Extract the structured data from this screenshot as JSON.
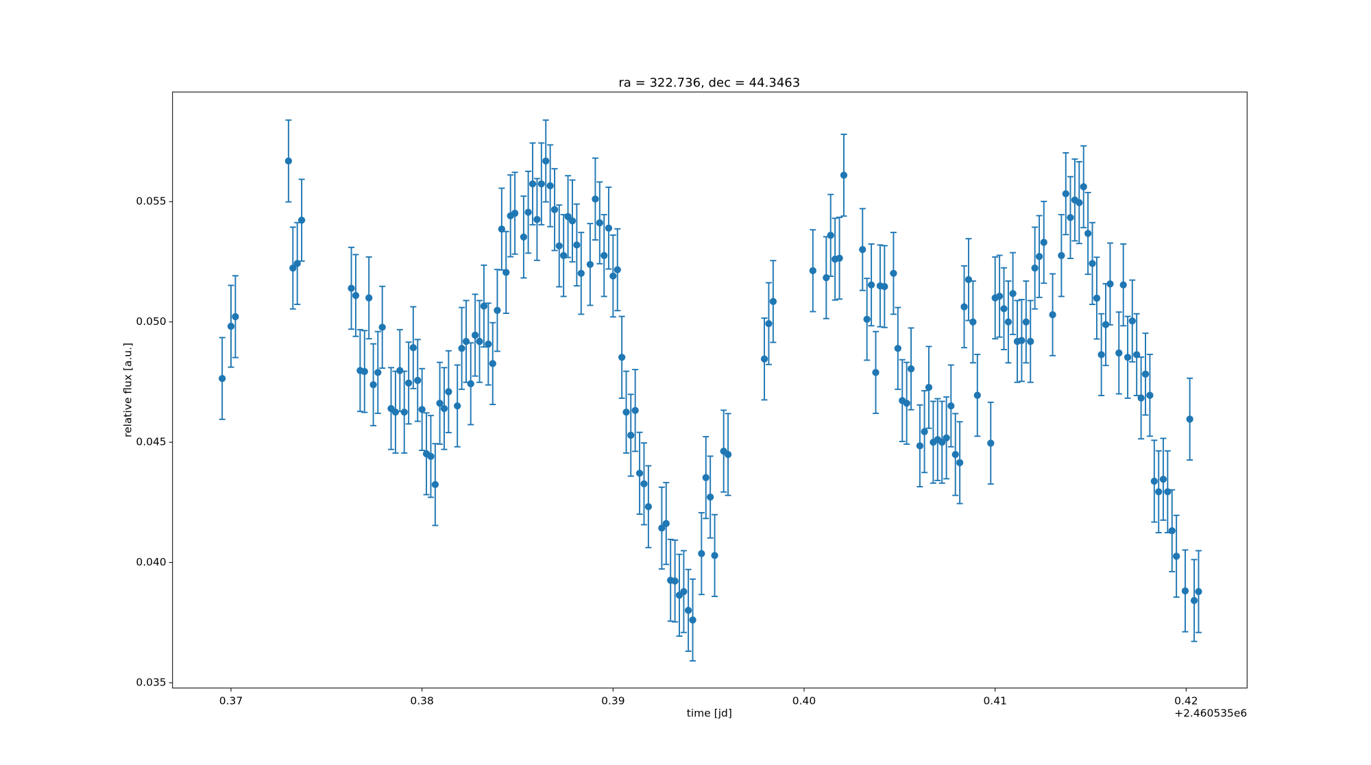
{
  "chart_data": {
    "type": "errorbar_scatter",
    "title": "ra = 322.736, dec = 44.3463",
    "xlabel": "time [jd]",
    "ylabel": "relative flux [a.u.]",
    "x_offset_label": "+2.460535e6",
    "color": "#1f77b4",
    "error": 0.0017,
    "xlim": [
      0.36694,
      0.42319
    ],
    "ylim": [
      0.03478,
      0.05956
    ],
    "xticks": [
      0.37,
      0.38,
      0.39,
      {
        "value": 0.4,
        "label": "0.40"
      },
      0.41,
      0.42
    ],
    "yticks": [
      0.035,
      {
        "value": 0.04,
        "label": "0.040"
      },
      0.045,
      {
        "value": 0.05,
        "label": "0.050"
      },
      0.055
    ],
    "x": [
      0.36954,
      0.37,
      0.37023,
      0.37301,
      0.37324,
      0.37347,
      0.3737,
      0.3763,
      0.37653,
      0.37676,
      0.37699,
      0.37722,
      0.37745,
      0.37769,
      0.37792,
      0.37838,
      0.37861,
      0.37884,
      0.37907,
      0.3793,
      0.37954,
      0.37977,
      0.38,
      0.38023,
      0.38046,
      0.38069,
      0.38093,
      0.38116,
      0.38139,
      0.38185,
      0.38208,
      0.38231,
      0.38255,
      0.38278,
      0.38301,
      0.38324,
      0.38347,
      0.3837,
      0.38394,
      0.38417,
      0.3844,
      0.38463,
      0.38486,
      0.38532,
      0.38556,
      0.38579,
      0.38602,
      0.38625,
      0.38648,
      0.38671,
      0.38694,
      0.38718,
      0.38741,
      0.38764,
      0.38787,
      0.3881,
      0.38833,
      0.3888,
      0.38907,
      0.3893,
      0.38953,
      0.38977,
      0.39,
      0.39023,
      0.39046,
      0.39069,
      0.39093,
      0.39116,
      0.39139,
      0.39162,
      0.39185,
      0.39255,
      0.39278,
      0.39301,
      0.39324,
      0.39347,
      0.3937,
      0.39394,
      0.39417,
      0.39463,
      0.39486,
      0.39509,
      0.39532,
      0.39579,
      0.39602,
      0.39792,
      0.39815,
      0.39838,
      0.40046,
      0.40116,
      0.40139,
      0.40162,
      0.40185,
      0.40208,
      0.40306,
      0.40329,
      0.40352,
      0.40375,
      0.40398,
      0.40421,
      0.40468,
      0.40491,
      0.40514,
      0.40537,
      0.4056,
      0.40606,
      0.4063,
      0.40653,
      0.40676,
      0.40699,
      0.40722,
      0.40745,
      0.40769,
      0.40792,
      0.40815,
      0.40838,
      0.40861,
      0.40884,
      0.40907,
      0.40977,
      0.41,
      0.41023,
      0.41046,
      0.41069,
      0.41093,
      0.41116,
      0.41139,
      0.41162,
      0.41185,
      0.41208,
      0.41231,
      0.41255,
      0.41301,
      0.41347,
      0.4137,
      0.41394,
      0.41417,
      0.4144,
      0.41463,
      0.41486,
      0.41509,
      0.41532,
      0.41556,
      0.41579,
      0.41602,
      0.41648,
      0.41671,
      0.41694,
      0.41718,
      0.41741,
      0.41764,
      0.41787,
      0.4181,
      0.41833,
      0.41856,
      0.4188,
      0.41903,
      0.41926,
      0.41949,
      0.41995,
      0.42019,
      0.42042,
      0.42065
    ],
    "values": [
      0.04765,
      0.04982,
      0.05022,
      0.05669,
      0.05224,
      0.05243,
      0.05423,
      0.0514,
      0.0511,
      0.04798,
      0.04794,
      0.051,
      0.04739,
      0.0479,
      0.04978,
      0.0464,
      0.04625,
      0.04798,
      0.04625,
      0.04746,
      0.04893,
      0.04757,
      0.04636,
      0.04452,
      0.04441,
      0.04324,
      0.04662,
      0.0464,
      0.0471,
      0.04651,
      0.0489,
      0.04919,
      0.04743,
      0.04945,
      0.04919,
      0.05066,
      0.04908,
      0.04827,
      0.05048,
      0.05386,
      0.05206,
      0.05441,
      0.05452,
      0.05353,
      0.05456,
      0.05574,
      0.05426,
      0.05574,
      0.05669,
      0.05566,
      0.05467,
      0.05316,
      0.05276,
      0.05438,
      0.0542,
      0.0532,
      0.05202,
      0.05239,
      0.05511,
      0.05412,
      0.05276,
      0.0539,
      0.05191,
      0.05217,
      0.04853,
      0.04625,
      0.04529,
      0.04632,
      0.04371,
      0.04327,
      0.04232,
      0.04143,
      0.04162,
      0.03926,
      0.03923,
      0.03864,
      0.03879,
      0.03801,
      0.03761,
      0.04037,
      0.04353,
      0.04272,
      0.04029,
      0.04463,
      0.04449,
      0.04846,
      0.04993,
      0.05085,
      0.05213,
      0.05184,
      0.0536,
      0.05261,
      0.05265,
      0.0561,
      0.05301,
      0.05011,
      0.05154,
      0.0479,
      0.0515,
      0.05147,
      0.05202,
      0.0489,
      0.04673,
      0.04662,
      0.04805,
      0.04485,
      0.04544,
      0.04728,
      0.045,
      0.04511,
      0.045,
      0.04518,
      0.04651,
      0.04449,
      0.04415,
      0.05063,
      0.05176,
      0.05,
      0.04695,
      0.04496,
      0.051,
      0.05107,
      0.05055,
      0.05,
      0.05118,
      0.04919,
      0.04923,
      0.05,
      0.04919,
      0.05224,
      0.05272,
      0.05331,
      0.0503,
      0.05276,
      0.05533,
      0.05434,
      0.05507,
      0.05496,
      0.05562,
      0.05368,
      0.05243,
      0.05099,
      0.04864,
      0.04989,
      0.05158,
      0.04871,
      0.05154,
      0.04853,
      0.05004,
      0.04864,
      0.04684,
      0.04783,
      0.04695,
      0.04338,
      0.04294,
      0.04346,
      0.04294,
      0.04132,
      0.04026,
      0.03882,
      0.04596,
      0.03842,
      0.03879
    ]
  }
}
